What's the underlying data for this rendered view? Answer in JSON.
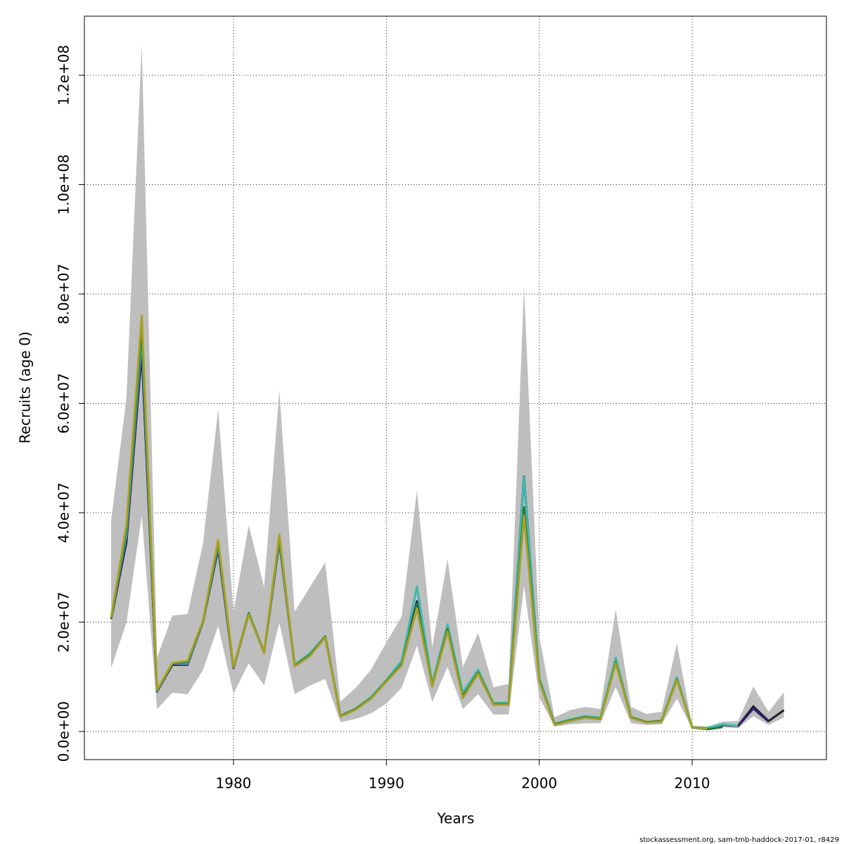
{
  "chart_data": {
    "type": "line",
    "x_label": "Years",
    "y_label": "Recruits (age 0)",
    "footer": "stockassessment.org, sam-tmb-haddock-2017-01, r8429",
    "x": [
      1972,
      1973,
      1974,
      1975,
      1976,
      1977,
      1978,
      1979,
      1980,
      1981,
      1982,
      1983,
      1984,
      1985,
      1986,
      1987,
      1988,
      1989,
      1990,
      1991,
      1992,
      1993,
      1994,
      1995,
      1996,
      1997,
      1998,
      1999,
      2000,
      2001,
      2002,
      2003,
      2004,
      2005,
      2006,
      2007,
      2008,
      2009,
      2010,
      2011,
      2012,
      2013,
      2014,
      2015,
      2016
    ],
    "band_color": "#bebebe",
    "band_upper": [
      38600000.0,
      61000000.0,
      125800000.0,
      13500000.0,
      21200000.0,
      21500000.0,
      34300000.0,
      58900000.0,
      21900000.0,
      37700000.0,
      26400000.0,
      62400000.0,
      21900000.0,
      26400000.0,
      30900000.0,
      5500000.0,
      8000000.0,
      11300000.0,
      16300000.0,
      21000000.0,
      44100000.0,
      15400000.0,
      31500000.0,
      11800000.0,
      18000000.0,
      8100000.0,
      8700000.0,
      81300000.0,
      17400000.0,
      2600000.0,
      3900000.0,
      4500000.0,
      4100000.0,
      22300000.0,
      4500000.0,
      3200000.0,
      3600000.0,
      16100000.0,
      1000000.0,
      900000.0,
      1800000.0,
      1900000.0,
      8200000.0,
      3600000.0,
      7200000.0
    ],
    "band_lower": [
      11600000.0,
      19900000.0,
      39500000.0,
      4100000.0,
      7100000.0,
      6800000.0,
      11200000.0,
      19300000.0,
      6900000.0,
      12500000.0,
      8400000.0,
      19900000.0,
      6800000.0,
      8400000.0,
      9600000.0,
      1700000.0,
      2300000.0,
      3300000.0,
      5100000.0,
      8000000.0,
      15700000.0,
      5400000.0,
      11800000.0,
      4100000.0,
      6800000.0,
      3100000.0,
      3100000.0,
      26600000.0,
      6200000.0,
      900000.0,
      1300000.0,
      1500000.0,
      1500000.0,
      8100000.0,
      1500000.0,
      1200000.0,
      1300000.0,
      6000000.0,
      500000.0,
      400000.0,
      800000.0,
      600000.0,
      2800000.0,
      1200000.0,
      2600000.0
    ],
    "series": [
      {
        "color": "#222222",
        "values": [
          20600000.0,
          34700000.0,
          69500000.0,
          7300000.0,
          12200000.0,
          12200000.0,
          20000000.0,
          33400000.0,
          11600000.0,
          21500000.0,
          14400000.0,
          34700000.0,
          12100000.0,
          14100000.0,
          17400000.0,
          2800000.0,
          4100000.0,
          6200000.0,
          9300000.0,
          12500000.0,
          23800000.0,
          8400000.0,
          19300000.0,
          6400000.0,
          10900000.0,
          5100000.0,
          5100000.0,
          46600000.0,
          9600000.0,
          1300000.0,
          2100000.0,
          2600000.0,
          2300000.0,
          12900000.0,
          2600000.0,
          1700000.0,
          1900000.0,
          9600000.0,
          800000.0,
          600000.0,
          1200000.0,
          1000000.0,
          4600000.0,
          1900000.0,
          3900000.0
        ]
      },
      {
        "color": "#2d1a6e",
        "values": [
          20600000.0,
          34700000.0,
          69500000.0,
          7300000.0,
          12200000.0,
          12200000.0,
          20000000.0,
          33400000.0,
          11600000.0,
          21500000.0,
          14400000.0,
          34700000.0,
          12100000.0,
          14100000.0,
          17400000.0,
          2800000.0,
          4100000.0,
          6200000.0,
          9300000.0,
          12500000.0,
          23800000.0,
          8400000.0,
          19300000.0,
          6400000.0,
          10900000.0,
          5100000.0,
          5100000.0,
          46600000.0,
          9600000.0,
          1300000.0,
          2100000.0,
          2600000.0,
          2300000.0,
          12900000.0,
          2600000.0,
          1700000.0,
          1900000.0,
          9600000.0,
          800000.0,
          600000.0,
          1200000.0,
          1000000.0,
          4200000.0,
          1800000.0,
          null
        ]
      },
      {
        "color": "#3fb8af",
        "values": [
          20800000.0,
          36000000.0,
          72000000.0,
          7400000.0,
          12400000.0,
          12400000.0,
          20000000.0,
          34000000.0,
          11700000.0,
          21700000.0,
          14500000.0,
          35000000.0,
          12200000.0,
          14300000.0,
          17400000.0,
          2900000.0,
          4200000.0,
          6300000.0,
          9400000.0,
          12900000.0,
          26500000.0,
          8800000.0,
          19600000.0,
          7100000.0,
          11300000.0,
          5200000.0,
          5300000.0,
          46500000.0,
          9900000.0,
          1400000.0,
          2200000.0,
          2800000.0,
          2500000.0,
          13500000.0,
          2700000.0,
          1700000.0,
          2000000.0,
          9900000.0,
          800000.0,
          600000.0,
          1300000.0,
          1000000.0,
          null,
          null,
          null
        ]
      },
      {
        "color": "#1f7a3a",
        "values": [
          20700000.0,
          37000000.0,
          74000000.0,
          7500000.0,
          12400000.0,
          12700000.0,
          20000000.0,
          34500000.0,
          11700000.0,
          21600000.0,
          14400000.0,
          35500000.0,
          12000000.0,
          14000000.0,
          17300000.0,
          2800000.0,
          4100000.0,
          6100000.0,
          9200000.0,
          12300000.0,
          23400000.0,
          8300000.0,
          18700000.0,
          6300000.0,
          10800000.0,
          5000000.0,
          5000000.0,
          41000000.0,
          9300000.0,
          1300000.0,
          2000000.0,
          2600000.0,
          2300000.0,
          12700000.0,
          2600000.0,
          1700000.0,
          1900000.0,
          9500000.0,
          700000.0,
          400000.0,
          800000.0,
          null,
          null,
          null,
          null
        ]
      },
      {
        "color": "#a8a020",
        "values": [
          20800000.0,
          37800000.0,
          76000000.0,
          7600000.0,
          12500000.0,
          12900000.0,
          20200000.0,
          35000000.0,
          11800000.0,
          21400000.0,
          14300000.0,
          36000000.0,
          11900000.0,
          13800000.0,
          17200000.0,
          2700000.0,
          4000000.0,
          6000000.0,
          9100000.0,
          12100000.0,
          22500000.0,
          8200000.0,
          18300000.0,
          6100000.0,
          10600000.0,
          4900000.0,
          4900000.0,
          39500000.0,
          9100000.0,
          1200000.0,
          1900000.0,
          2500000.0,
          2200000.0,
          12500000.0,
          2500000.0,
          1600000.0,
          1800000.0,
          9400000.0,
          700000.0,
          500000.0,
          null,
          null,
          null,
          null,
          null
        ]
      }
    ],
    "xlim": [
      1970.25,
      2018.78
    ],
    "ylim": [
      -5140000,
      130800000
    ],
    "xticks": [
      1980,
      1990,
      2000,
      2010
    ],
    "yticks": [
      {
        "value": 0,
        "label": "0.0e+00"
      },
      {
        "value": 20000000,
        "label": "2.0e+07"
      },
      {
        "value": 40000000,
        "label": "4.0e+07"
      },
      {
        "value": 60000000,
        "label": "6.0e+07"
      },
      {
        "value": 80000000,
        "label": "8.0e+07"
      },
      {
        "value": 100000000,
        "label": "1.0e+08"
      },
      {
        "value": 120000000,
        "label": "1.2e+08"
      }
    ],
    "grid": true
  }
}
